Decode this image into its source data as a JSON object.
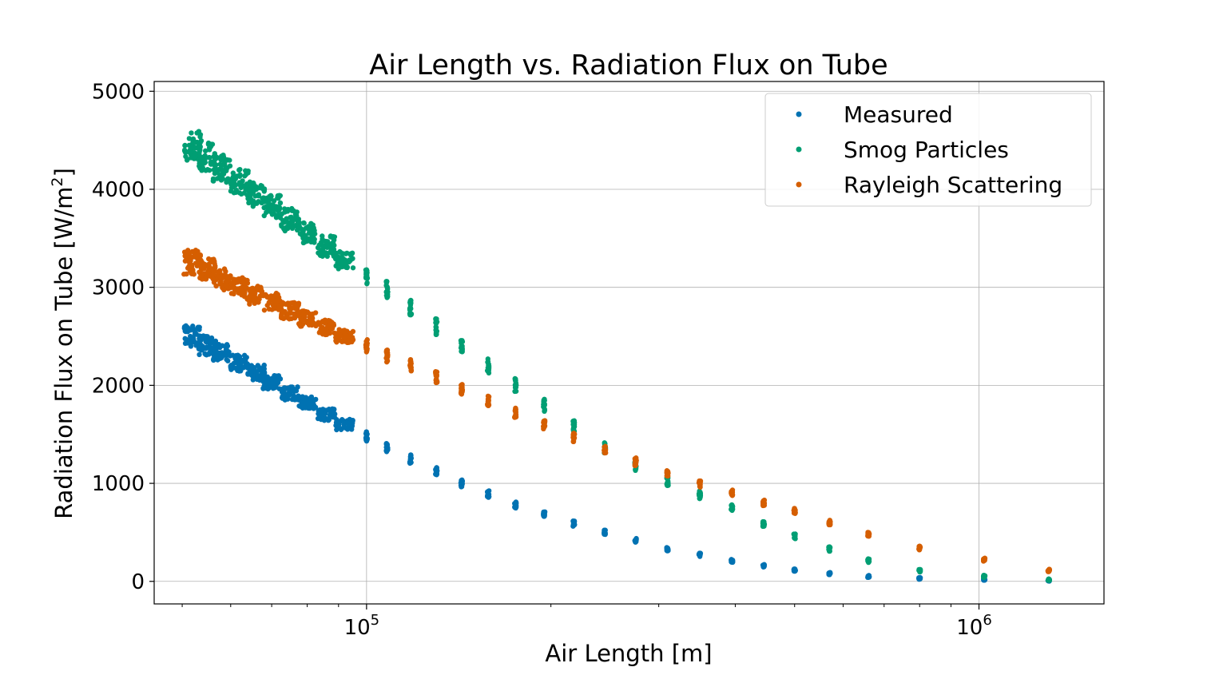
{
  "chart_data": {
    "type": "scatter",
    "title": "Air Length vs. Radiation Flux on Tube",
    "xlabel": "Air Length [m]",
    "ylabel_main": "Radiation Flux on Tube [W/m",
    "ylabel_sup": "2",
    "ylabel_end": "]",
    "xscale": "log",
    "xlim": [
      45000,
      1600000
    ],
    "ylim": [
      -230,
      5100
    ],
    "x_major_ticks": [
      {
        "value": 100000,
        "base": "10",
        "exp": "5"
      },
      {
        "value": 1000000,
        "base": "10",
        "exp": "6"
      }
    ],
    "y_ticks": [
      0,
      1000,
      2000,
      3000,
      4000,
      5000
    ],
    "grid": true,
    "legend_position": "top-right",
    "series": [
      {
        "name": "Measured",
        "color": "#0072b2",
        "points": [
          [
            52000,
            2500
          ],
          [
            55000,
            2410
          ],
          [
            58000,
            2330
          ],
          [
            62000,
            2230
          ],
          [
            66000,
            2130
          ],
          [
            70000,
            2030
          ],
          [
            75000,
            1920
          ],
          [
            80000,
            1820
          ],
          [
            86000,
            1700
          ],
          [
            92000,
            1600
          ],
          [
            100000,
            1480
          ],
          [
            108000,
            1370
          ],
          [
            118000,
            1250
          ],
          [
            130000,
            1120
          ],
          [
            143000,
            1000
          ],
          [
            158000,
            890
          ],
          [
            175000,
            780
          ],
          [
            195000,
            680
          ],
          [
            218000,
            590
          ],
          [
            245000,
            500
          ],
          [
            275000,
            420
          ],
          [
            310000,
            330
          ],
          [
            350000,
            270
          ],
          [
            395000,
            210
          ],
          [
            445000,
            160
          ],
          [
            500000,
            115
          ],
          [
            570000,
            80
          ],
          [
            660000,
            50
          ],
          [
            800000,
            30
          ],
          [
            1020000,
            20
          ],
          [
            1300000,
            10
          ]
        ],
        "spread": [
          220,
          200,
          180,
          170,
          160,
          150,
          140,
          130,
          120,
          110,
          100,
          95,
          90,
          85,
          80,
          70,
          65,
          60,
          55,
          50,
          45,
          40,
          35,
          30,
          28,
          25,
          22,
          20,
          18,
          16,
          15
        ]
      },
      {
        "name": "Smog Particles",
        "color": "#009e73",
        "points": [
          [
            52000,
            4450
          ],
          [
            55000,
            4330
          ],
          [
            58000,
            4210
          ],
          [
            62000,
            4080
          ],
          [
            66000,
            3950
          ],
          [
            70000,
            3820
          ],
          [
            75000,
            3690
          ],
          [
            80000,
            3560
          ],
          [
            86000,
            3420
          ],
          [
            92000,
            3280
          ],
          [
            100000,
            3130
          ],
          [
            108000,
            2980
          ],
          [
            118000,
            2800
          ],
          [
            130000,
            2600
          ],
          [
            143000,
            2400
          ],
          [
            158000,
            2200
          ],
          [
            175000,
            2000
          ],
          [
            195000,
            1800
          ],
          [
            218000,
            1580
          ],
          [
            245000,
            1360
          ],
          [
            275000,
            1180
          ],
          [
            310000,
            1020
          ],
          [
            350000,
            880
          ],
          [
            395000,
            750
          ],
          [
            445000,
            580
          ],
          [
            500000,
            460
          ],
          [
            570000,
            330
          ],
          [
            660000,
            210
          ],
          [
            800000,
            110
          ],
          [
            1020000,
            50
          ],
          [
            1300000,
            20
          ]
        ],
        "spread": [
          330,
          300,
          280,
          260,
          250,
          240,
          230,
          220,
          210,
          200,
          190,
          180,
          175,
          170,
          160,
          150,
          140,
          130,
          120,
          110,
          100,
          90,
          80,
          70,
          60,
          50,
          45,
          40,
          30,
          25,
          20
        ]
      },
      {
        "name": "Rayleigh Scattering",
        "color": "#d55e00",
        "points": [
          [
            52000,
            3250
          ],
          [
            55000,
            3170
          ],
          [
            58000,
            3080
          ],
          [
            62000,
            3000
          ],
          [
            66000,
            2920
          ],
          [
            70000,
            2850
          ],
          [
            75000,
            2760
          ],
          [
            80000,
            2680
          ],
          [
            86000,
            2590
          ],
          [
            92000,
            2500
          ],
          [
            100000,
            2400
          ],
          [
            108000,
            2300
          ],
          [
            118000,
            2200
          ],
          [
            130000,
            2080
          ],
          [
            143000,
            1960
          ],
          [
            158000,
            1840
          ],
          [
            175000,
            1720
          ],
          [
            195000,
            1600
          ],
          [
            218000,
            1470
          ],
          [
            245000,
            1340
          ],
          [
            275000,
            1220
          ],
          [
            310000,
            1100
          ],
          [
            350000,
            990
          ],
          [
            395000,
            900
          ],
          [
            445000,
            800
          ],
          [
            500000,
            720
          ],
          [
            570000,
            600
          ],
          [
            660000,
            480
          ],
          [
            800000,
            340
          ],
          [
            1020000,
            220
          ],
          [
            1300000,
            110
          ]
        ],
        "spread": [
          260,
          240,
          220,
          200,
          190,
          180,
          170,
          160,
          150,
          140,
          135,
          130,
          125,
          120,
          110,
          105,
          100,
          95,
          90,
          85,
          80,
          75,
          70,
          65,
          60,
          55,
          50,
          45,
          40,
          35,
          30
        ]
      }
    ]
  }
}
